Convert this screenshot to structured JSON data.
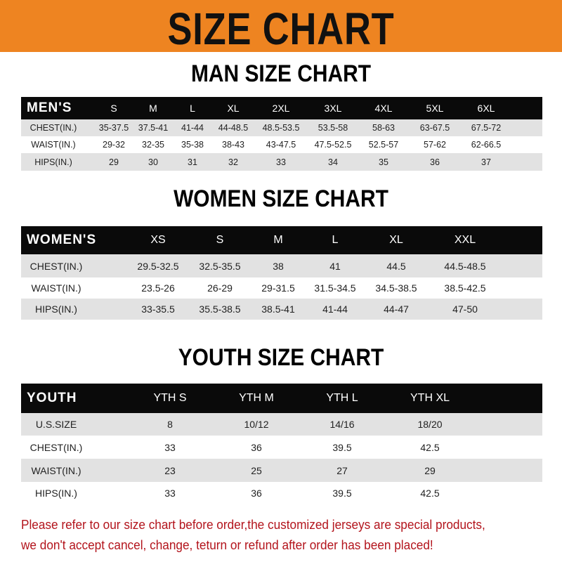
{
  "title": "SIZE CHART",
  "colors": {
    "banner": "#ee8421",
    "header_row": "#0a0a0a",
    "stripe": "#e2e2e2",
    "notice": "#b3141c"
  },
  "men": {
    "title": "MAN SIZE CHART",
    "header": "MEN'S",
    "sizes": [
      "S",
      "M",
      "L",
      "XL",
      "2XL",
      "3XL",
      "4XL",
      "5XL",
      "6XL"
    ],
    "rows": [
      {
        "label": "CHEST(IN.)",
        "values": [
          "35-37.5",
          "37.5-41",
          "41-44",
          "44-48.5",
          "48.5-53.5",
          "53.5-58",
          "58-63",
          "63-67.5",
          "67.5-72"
        ]
      },
      {
        "label": "WAIST(IN.)",
        "values": [
          "29-32",
          "32-35",
          "35-38",
          "38-43",
          "43-47.5",
          "47.5-52.5",
          "52.5-57",
          "57-62",
          "62-66.5"
        ]
      },
      {
        "label": "HIPS(IN.)",
        "values": [
          "29",
          "30",
          "31",
          "32",
          "33",
          "34",
          "35",
          "36",
          "37"
        ]
      }
    ]
  },
  "women": {
    "title": "WOMEN SIZE CHART",
    "header": "WOMEN'S",
    "sizes": [
      "XS",
      "S",
      "M",
      "L",
      "XL",
      "XXL"
    ],
    "rows": [
      {
        "label": "CHEST(IN.)",
        "values": [
          "29.5-32.5",
          "32.5-35.5",
          "38",
          "41",
          "44.5",
          "44.5-48.5"
        ]
      },
      {
        "label": "WAIST(IN.)",
        "values": [
          "23.5-26",
          "26-29",
          "29-31.5",
          "31.5-34.5",
          "34.5-38.5",
          "38.5-42.5"
        ]
      },
      {
        "label": "HIPS(IN.)",
        "values": [
          "33-35.5",
          "35.5-38.5",
          "38.5-41",
          "41-44",
          "44-47",
          "47-50"
        ]
      }
    ]
  },
  "youth": {
    "title": "YOUTH SIZE CHART",
    "header": "YOUTH",
    "sizes": [
      "YTH S",
      "YTH M",
      "YTH L",
      "YTH XL"
    ],
    "rows": [
      {
        "label": "U.S.SIZE",
        "values": [
          "8",
          "10/12",
          "14/16",
          "18/20"
        ]
      },
      {
        "label": "CHEST(IN.)",
        "values": [
          "33",
          "36",
          "39.5",
          "42.5"
        ]
      },
      {
        "label": "WAIST(IN.)",
        "values": [
          "23",
          "25",
          "27",
          "29"
        ]
      },
      {
        "label": "HIPS(IN.)",
        "values": [
          "33",
          "36",
          "39.5",
          "42.5"
        ]
      }
    ]
  },
  "notice": {
    "line1": "Please refer to our size chart before order,the customized jerseys are special products,",
    "line2": "we don't accept cancel, change, teturn or refund after order has been placed!"
  }
}
